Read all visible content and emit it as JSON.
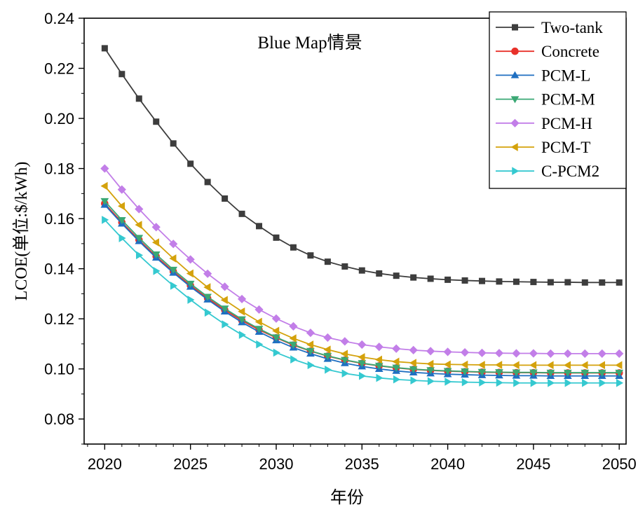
{
  "chart_data": {
    "type": "line",
    "title": "Blue Map情景",
    "xlabel": "年份",
    "ylabel": "LCOE(单位:$/kWh)",
    "xlim": [
      2018.8,
      2050.4
    ],
    "ylim": [
      0.07,
      0.24
    ],
    "x_ticks": [
      2020,
      2025,
      2030,
      2035,
      2040,
      2045,
      2050
    ],
    "y_ticks": [
      0.08,
      0.1,
      0.12,
      0.14,
      0.16,
      0.18,
      0.2,
      0.22,
      0.24
    ],
    "x_tick_labels": [
      "2020",
      "2025",
      "2030",
      "2035",
      "2040",
      "2045",
      "2050"
    ],
    "y_tick_labels": [
      "0.08",
      "0.10",
      "0.12",
      "0.14",
      "0.16",
      "0.18",
      "0.20",
      "0.22",
      "0.24"
    ],
    "legend_position": "top-right",
    "grid": false,
    "x": [
      2020,
      2021,
      2022,
      2023,
      2024,
      2025,
      2026,
      2027,
      2028,
      2029,
      2030,
      2031,
      2032,
      2033,
      2034,
      2035,
      2036,
      2037,
      2038,
      2039,
      2040,
      2041,
      2042,
      2043,
      2044,
      2045,
      2046,
      2047,
      2048,
      2049,
      2050
    ],
    "series": [
      {
        "name": "Two-tank",
        "marker": "square",
        "color": "#3d3d3d",
        "values": [
          0.228,
          0.2177,
          0.2079,
          0.1987,
          0.19,
          0.1819,
          0.1746,
          0.168,
          0.1619,
          0.157,
          0.1524,
          0.1485,
          0.1453,
          0.1428,
          0.1409,
          0.1393,
          0.1381,
          0.1372,
          0.1365,
          0.136,
          0.1356,
          0.1353,
          0.1351,
          0.1349,
          0.1348,
          0.1347,
          0.1346,
          0.1346,
          0.1345,
          0.1345,
          0.1345
        ]
      },
      {
        "name": "Concrete",
        "marker": "circle",
        "color": "#e8312a",
        "values": [
          0.166,
          0.1585,
          0.1515,
          0.1449,
          0.1389,
          0.1333,
          0.1282,
          0.1235,
          0.1193,
          0.1156,
          0.1124,
          0.1095,
          0.1071,
          0.1051,
          0.1035,
          0.1022,
          0.1012,
          0.1004,
          0.0998,
          0.0994,
          0.0991,
          0.0989,
          0.0987,
          0.0986,
          0.0985,
          0.0985,
          0.0984,
          0.0984,
          0.0984,
          0.0984,
          0.0984
        ]
      },
      {
        "name": "PCM-L",
        "marker": "triangle-up",
        "color": "#1f6fc1",
        "values": [
          0.1655,
          0.158,
          0.151,
          0.1444,
          0.1384,
          0.1328,
          0.1277,
          0.1229,
          0.1186,
          0.1148,
          0.1114,
          0.1085,
          0.1061,
          0.104,
          0.1023,
          0.101,
          0.1,
          0.0992,
          0.0986,
          0.0982,
          0.0979,
          0.0977,
          0.0975,
          0.0974,
          0.0973,
          0.0973,
          0.0972,
          0.0972,
          0.0972,
          0.0972,
          0.0972
        ]
      },
      {
        "name": "PCM-M",
        "marker": "triangle-down",
        "color": "#3aa874",
        "values": [
          0.167,
          0.1594,
          0.1523,
          0.1457,
          0.1396,
          0.134,
          0.1288,
          0.1241,
          0.1198,
          0.116,
          0.1126,
          0.1097,
          0.1072,
          0.1052,
          0.1036,
          0.1023,
          0.1013,
          0.1005,
          0.0999,
          0.0995,
          0.0992,
          0.099,
          0.0988,
          0.0987,
          0.0986,
          0.0986,
          0.0985,
          0.0985,
          0.0985,
          0.0985,
          0.0985
        ]
      },
      {
        "name": "PCM-H",
        "marker": "diamond",
        "color": "#c27ee8",
        "values": [
          0.18,
          0.1716,
          0.1638,
          0.1566,
          0.1499,
          0.1437,
          0.138,
          0.1328,
          0.1279,
          0.1237,
          0.1201,
          0.117,
          0.1144,
          0.1125,
          0.111,
          0.1097,
          0.1088,
          0.1081,
          0.1075,
          0.1071,
          0.1068,
          0.1066,
          0.1064,
          0.1063,
          0.1062,
          0.1062,
          0.1061,
          0.1061,
          0.1061,
          0.1061,
          0.1061
        ]
      },
      {
        "name": "PCM-T",
        "marker": "triangle-left",
        "color": "#d4a20c",
        "values": [
          0.173,
          0.165,
          0.1575,
          0.1505,
          0.1441,
          0.1381,
          0.1326,
          0.1275,
          0.1229,
          0.1188,
          0.1152,
          0.1122,
          0.1097,
          0.1077,
          0.106,
          0.1047,
          0.1037,
          0.1029,
          0.1024,
          0.102,
          0.1018,
          0.1017,
          0.1016,
          0.1016,
          0.1015,
          0.1015,
          0.1015,
          0.1015,
          0.1015,
          0.1015,
          0.1015
        ]
      },
      {
        "name": "C-PCM2",
        "marker": "triangle-right",
        "color": "#35c9d0",
        "values": [
          0.1595,
          0.1522,
          0.1454,
          0.1391,
          0.1332,
          0.1276,
          0.1225,
          0.1178,
          0.1136,
          0.1098,
          0.1065,
          0.1038,
          0.1015,
          0.0997,
          0.0982,
          0.0972,
          0.0964,
          0.0958,
          0.0954,
          0.0951,
          0.0949,
          0.0947,
          0.0946,
          0.0945,
          0.0944,
          0.0944,
          0.0944,
          0.0944,
          0.0944,
          0.0944,
          0.0944
        ]
      }
    ]
  }
}
